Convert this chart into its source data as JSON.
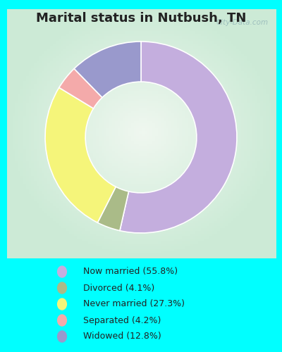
{
  "title": "Marital status in Nutbush, TN",
  "categories": [
    "Now married",
    "Divorced",
    "Never married",
    "Separated",
    "Widowed"
  ],
  "values": [
    55.8,
    4.1,
    27.3,
    4.2,
    12.8
  ],
  "colors": [
    "#C4AEDE",
    "#AABB88",
    "#F5F57A",
    "#F4AAAA",
    "#9999CC"
  ],
  "legend_labels": [
    "Now married (55.8%)",
    "Divorced (4.1%)",
    "Never married (27.3%)",
    "Separated (4.2%)",
    "Widowed (12.8%)"
  ],
  "background_outer": "#00FFFF",
  "watermark": "City-Data.com",
  "donut_width": 0.42,
  "start_angle": 90
}
